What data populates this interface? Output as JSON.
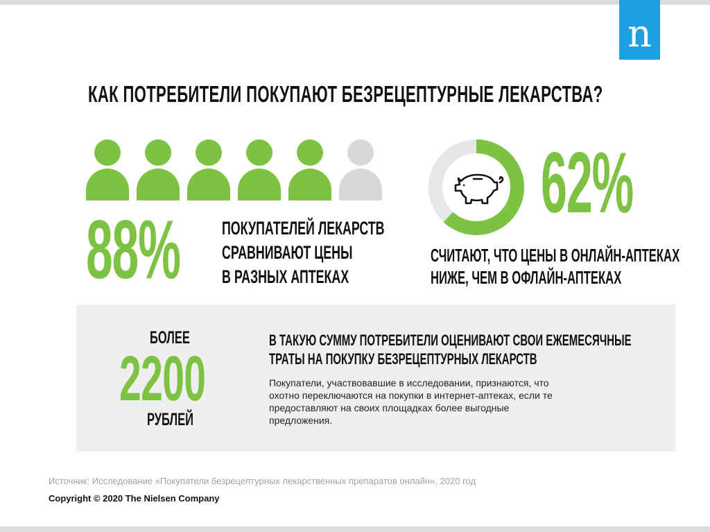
{
  "logo": {
    "letter": "n"
  },
  "title": "Как потребители покупают безрецептурные лекарства?",
  "stat_88": {
    "value": "88%",
    "people_total": 6,
    "people_highlighted": 5,
    "description_lines": [
      "Покупателей лекарств",
      "сравнивают цены",
      "в разных аптеках"
    ]
  },
  "stat_62": {
    "value": "62%",
    "donut_fraction": 0.62,
    "icon": "piggy-bank-icon",
    "description_lines": [
      "Считают, что цены в онлайн-аптеках",
      "ниже, чем в офлайн-аптеках"
    ]
  },
  "spend": {
    "prefix": "Более",
    "amount": "2200",
    "suffix": "рублей",
    "heading_lines": [
      "В такую сумму потребители оценивают свои ежемесячные",
      "траты на покупку безрецептурных лекарств"
    ],
    "body_lines": [
      "Покупатели, участвовавшие в исследовании, признаются, что",
      "охотно переключаются на покупки в интернет-аптеках, если те",
      "предоставляют на своих площадках более выгодные",
      "предложения."
    ]
  },
  "source": "Источник: Исследование «Покупатели безрецептурных лекарственных препаратов онлайн», 2020 год",
  "copyright": "Copyright © 2020 The Nielsen Company",
  "colors": {
    "accent_green": "#7dc242",
    "inactive_grey": "#d8d8d8",
    "logo_blue": "#1ba0e2",
    "panel_grey": "#efefef"
  }
}
